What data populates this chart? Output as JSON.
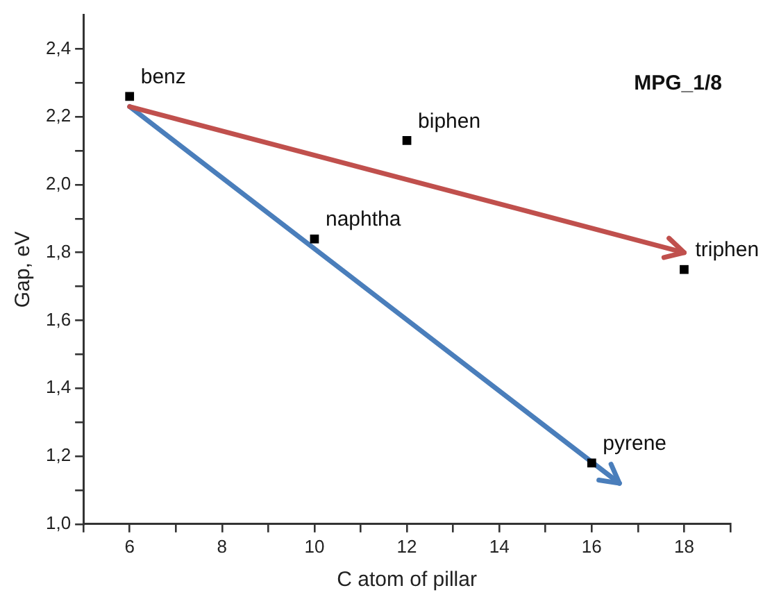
{
  "chart_data": {
    "type": "scatter",
    "xlabel": "C atom of pillar",
    "ylabel": "Gap, eV",
    "marker": "square",
    "grid": false,
    "legend": false,
    "xlim": [
      5,
      19
    ],
    "xticks": [
      {
        "value": 5,
        "label": null
      },
      {
        "value": 6,
        "label": "6"
      },
      {
        "value": 7,
        "label": null
      },
      {
        "value": 8,
        "label": "8"
      },
      {
        "value": 9,
        "label": null
      },
      {
        "value": 10,
        "label": "10"
      },
      {
        "value": 11,
        "label": null
      },
      {
        "value": 12,
        "label": "12"
      },
      {
        "value": 13,
        "label": null
      },
      {
        "value": 14,
        "label": "14"
      },
      {
        "value": 15,
        "label": null
      },
      {
        "value": 16,
        "label": "16"
      },
      {
        "value": 17,
        "label": null
      },
      {
        "value": 18,
        "label": "18"
      },
      {
        "value": 19,
        "label": null
      }
    ],
    "ylim": [
      1.0,
      2.5
    ],
    "yticks": [
      {
        "value": 1.0,
        "label": "1,0"
      },
      {
        "value": 1.1,
        "label": null
      },
      {
        "value": 1.2,
        "label": "1,2"
      },
      {
        "value": 1.3,
        "label": null
      },
      {
        "value": 1.4,
        "label": "1,4"
      },
      {
        "value": 1.5,
        "label": null
      },
      {
        "value": 1.6,
        "label": "1,6"
      },
      {
        "value": 1.7,
        "label": null
      },
      {
        "value": 1.8,
        "label": "1,8"
      },
      {
        "value": 1.9,
        "label": null
      },
      {
        "value": 2.0,
        "label": "2,0"
      },
      {
        "value": 2.1,
        "label": null
      },
      {
        "value": 2.2,
        "label": "2,2"
      },
      {
        "value": 2.3,
        "label": null
      },
      {
        "value": 2.4,
        "label": "2,4"
      }
    ],
    "series": [
      {
        "color": "#000000",
        "x": [
          6,
          10,
          12,
          16,
          18
        ],
        "values": [
          2.26,
          1.84,
          2.13,
          1.18,
          1.75
        ]
      },
      {
        "type": "line",
        "color": "#c0504d",
        "marker": "none",
        "x": [
          6,
          18
        ],
        "values": [
          2.23,
          1.8
        ]
      },
      {
        "type": "line",
        "color": "#4a7ebb",
        "marker": "none",
        "x": [
          6,
          16.6
        ],
        "values": [
          2.23,
          1.12
        ]
      }
    ],
    "annotations": [
      "MPG_1/8",
      {
        "text": "benz",
        "x": 6,
        "y": 2.26
      },
      {
        "text": "naphtha",
        "x": 10,
        "y": 1.84
      },
      {
        "text": "biphen",
        "x": 12,
        "y": 2.13
      },
      {
        "text": "pyrene",
        "x": 16,
        "y": 1.18
      },
      {
        "text": "triphen",
        "x": 18,
        "y": 1.75
      }
    ]
  }
}
